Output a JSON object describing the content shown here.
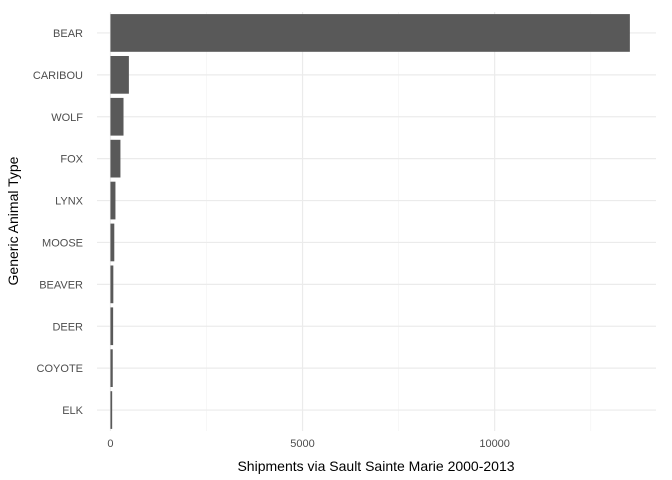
{
  "chart_data": {
    "type": "bar",
    "orientation": "horizontal",
    "categories": [
      "BEAR",
      "CARIBOU",
      "WOLF",
      "FOX",
      "LYNX",
      "MOOSE",
      "BEAVER",
      "DEER",
      "COYOTE",
      "ELK"
    ],
    "values": [
      13520,
      480,
      340,
      260,
      130,
      100,
      75,
      70,
      60,
      45
    ],
    "title": "",
    "xlabel": "Shipments via Sault Sainte Marie 2000-2013",
    "ylabel": "Generic Animal Type",
    "xlim": [
      -350,
      14200
    ],
    "xticks": [
      0,
      5000,
      10000
    ],
    "xtick_labels": [
      "0",
      "5000",
      "10000"
    ],
    "grid": true,
    "legend": "none",
    "bar_color": "#595959",
    "grid_major_color": "#ebebeb",
    "grid_minor_color": "#f5f5f5"
  }
}
